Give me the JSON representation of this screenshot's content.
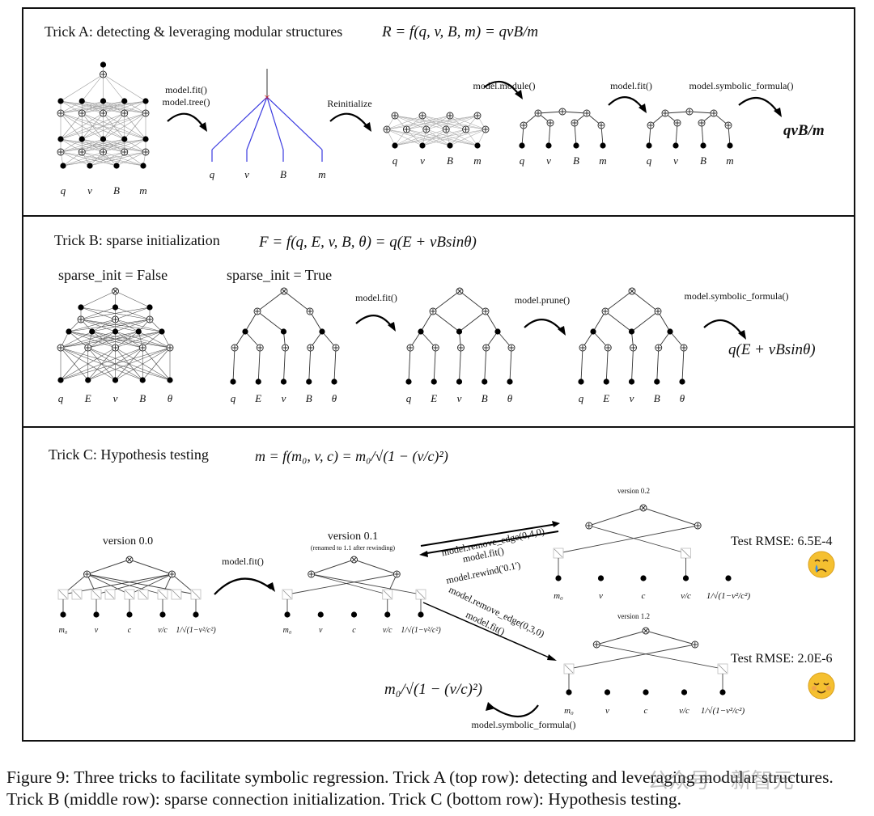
{
  "panel_a": {
    "title": "Trick A: detecting & leveraging modular structures",
    "formula": "R = f(q, v, B, m) = qvB/m",
    "step1": [
      "model.fit()",
      "model.tree()"
    ],
    "step2": "Reinitialize",
    "step3": "model.module()",
    "step4": "model.fit()",
    "step5": "model.symbolic_formula()",
    "result": "qvB/m",
    "inputs": [
      "q",
      "v",
      "B",
      "m"
    ]
  },
  "panel_b": {
    "title": "Trick B: sparse initialization",
    "formula": "F = f(q, E, v, B, θ) = q(E + vBsinθ)",
    "label_false": "sparse_init = False",
    "label_true": "sparse_init = True",
    "step1": "model.fit()",
    "step2": "model.prune()",
    "step3": "model.symbolic_formula()",
    "result": "q(E + vBsinθ)",
    "inputs": [
      "q",
      "E",
      "v",
      "B",
      "θ"
    ]
  },
  "panel_c": {
    "title": "Trick C: Hypothesis testing",
    "formula": "m = f(m₀, v, c) = m₀/√(1 − (v/c)²)",
    "v00": "version 0.0",
    "fit": "model.fit()",
    "v01": "version 0.1",
    "v01_note": "(renamed to 1.1 after rewinding)",
    "remove1": "model.remove_edge(0,4,0)",
    "fit1": "model.fit()",
    "rewind": "model.rewind('0.1')",
    "remove2": "model.remove_edge(0,3,0)",
    "fit2": "model.fit()",
    "v02": "version 0.2",
    "v12": "version 1.2",
    "rmse1": "Test RMSE: 6.5E-4",
    "rmse2": "Test RMSE: 2.0E-6",
    "emoji1": "crying-face",
    "emoji2": "relieved-face",
    "result": "m₀/√(1 − (v/c)²)",
    "symbolic": "model.symbolic_formula()",
    "inputs": [
      "m₀",
      "v",
      "c",
      "v/c",
      "1/√(1−v²/c²)"
    ]
  },
  "caption": "Figure 9: Three tricks to facilitate symbolic regression. Trick A (top row): detecting and leveraging modular structures. Trick B (middle row): sparse connection initialization. Trick C (bottom row): Hypothesis testing.",
  "watermark": "公众号 · 新智元",
  "colors": {
    "tree_edges": "#3a3ae0",
    "root_marker": "#e02020",
    "emoji": "#f5c030"
  }
}
